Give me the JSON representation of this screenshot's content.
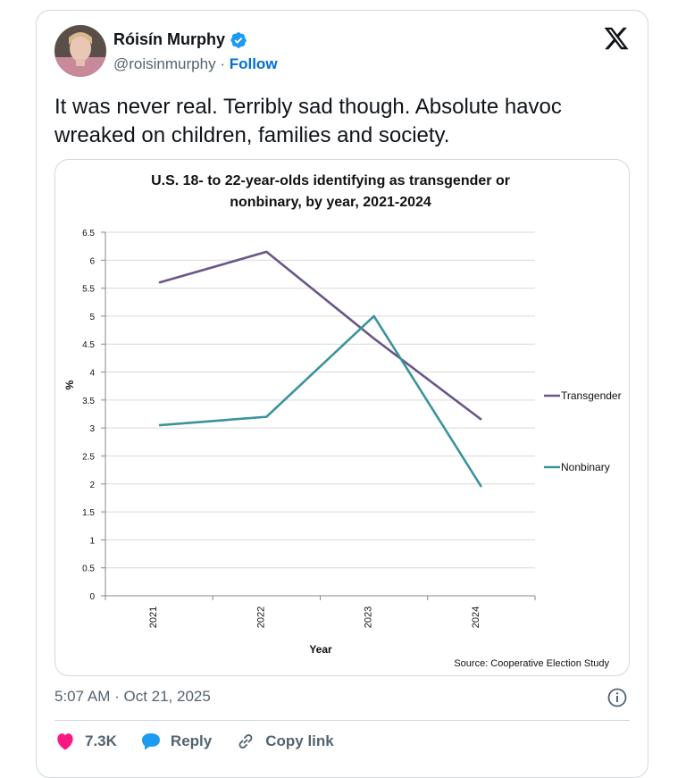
{
  "tweet": {
    "author_name": "Róisín Murphy",
    "handle": "@roisinmurphy",
    "separator": "·",
    "follow_label": "Follow",
    "text": "It was never real. Terribly sad though. Absolute havoc wreaked on children, families and society.",
    "timestamp": "5:07 AM · Oct 21, 2025",
    "likes": "7.3K",
    "reply_label": "Reply",
    "copy_link_label": "Copy link"
  },
  "colors": {
    "like": "#f91880",
    "reply": "#1d9bf0",
    "follow": "#006fd6",
    "transgender_line": "#6a5687",
    "nonbinary_line": "#3b939c"
  },
  "chart_data": {
    "type": "line",
    "title_line1": "U.S. 18- to 22-year-olds identifying as transgender or",
    "title_line2": "nonbinary, by year, 2021-2024",
    "xlabel": "Year",
    "ylabel": "%",
    "categories": [
      "2021",
      "2022",
      "2023",
      "2024"
    ],
    "ylim": [
      0,
      6.5
    ],
    "yticks": [
      "0",
      "0.5",
      "1",
      "1.5",
      "2",
      "2.5",
      "3",
      "3.5",
      "4",
      "4.5",
      "5",
      "5.5",
      "6",
      "6.5"
    ],
    "series": [
      {
        "name": "Transgender",
        "values": [
          5.6,
          6.15,
          4.6,
          3.15
        ]
      },
      {
        "name": "Nonbinary",
        "values": [
          3.05,
          3.2,
          5.0,
          1.95
        ]
      }
    ],
    "legend_placement": "right",
    "grid": true,
    "source": "Source: Cooperative Election Study"
  }
}
